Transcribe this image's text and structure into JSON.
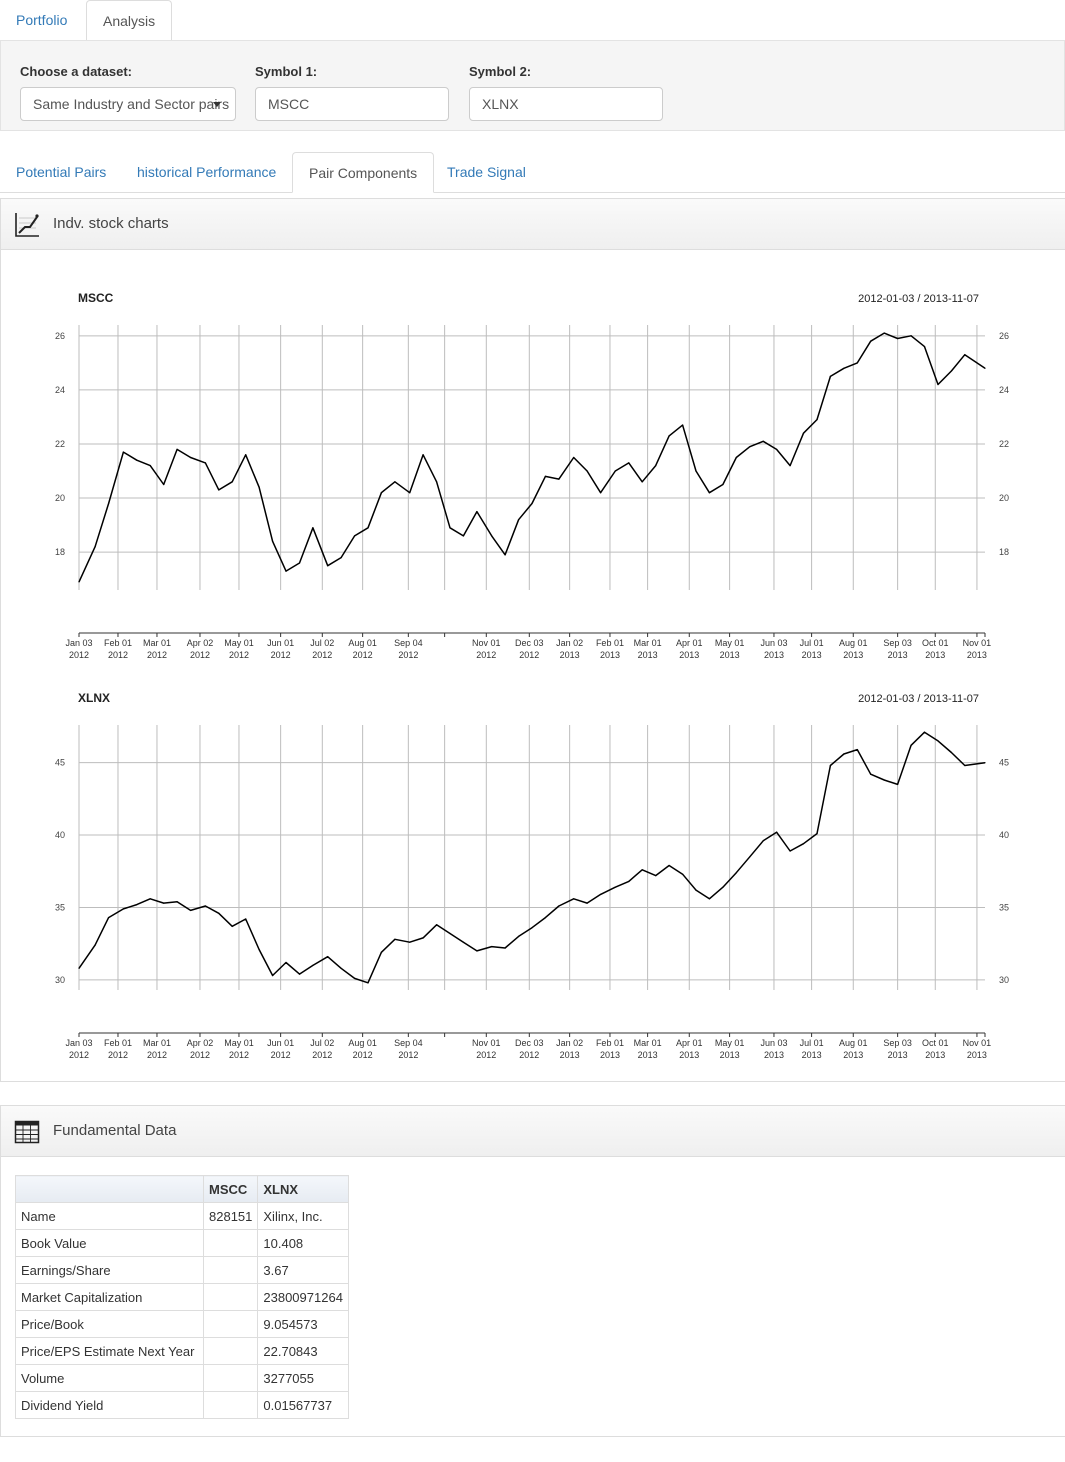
{
  "nav": {
    "tabs": [
      {
        "label": "Portfolio"
      },
      {
        "label": "Analysis"
      }
    ]
  },
  "controls": {
    "dataset_label": "Choose a dataset:",
    "dataset_value": "Same Industry and Sector pairs",
    "symbol1_label": "Symbol 1:",
    "symbol1_value": "MSCC",
    "symbol2_label": "Symbol 2:",
    "symbol2_value": "XLNX"
  },
  "subtabs": [
    {
      "label": "Potential Pairs"
    },
    {
      "label": "historical Performance"
    },
    {
      "label": "Pair Components"
    },
    {
      "label": "Trade Signal"
    }
  ],
  "panel_charts": {
    "title": "Indv. stock charts",
    "icon": "line-chart-icon"
  },
  "panel_fund": {
    "title": "Fundamental Data",
    "icon": "table-icon"
  },
  "chart_data": [
    {
      "type": "line",
      "title": "MSCC",
      "date_range": "2012-01-03 / 2013-11-07",
      "x_ticks": [
        "Jan 03\n2012",
        "Feb 01\n2012",
        "Mar 01\n2012",
        "Apr 02\n2012",
        "May 01\n2012",
        "Jun 01\n2012",
        "Jul 02\n2012",
        "Aug 01\n2012",
        "Sep 04\n2012",
        "Nov 01\n2012",
        "Dec 03\n2012",
        "Jan 02\n2013",
        "Feb 01\n2013",
        "Mar 01\n2013",
        "Apr 01\n2013",
        "May 01\n2013",
        "Jun 03\n2013",
        "Jul 01\n2013",
        "Aug 01\n2013",
        "Sep 03\n2013",
        "Oct 01\n2013",
        "Nov 01\n2013"
      ],
      "y_ticks": [
        18,
        20,
        22,
        24,
        26
      ],
      "ylim": [
        16.6,
        26.4
      ],
      "x": [
        "2012-01-03",
        "2012-01-15",
        "2012-01-25",
        "2012-02-05",
        "2012-02-15",
        "2012-02-25",
        "2012-03-06",
        "2012-03-16",
        "2012-03-26",
        "2012-04-06",
        "2012-04-16",
        "2012-04-26",
        "2012-05-06",
        "2012-05-16",
        "2012-05-26",
        "2012-06-05",
        "2012-06-15",
        "2012-06-25",
        "2012-07-06",
        "2012-07-16",
        "2012-07-26",
        "2012-08-05",
        "2012-08-15",
        "2012-08-25",
        "2012-09-05",
        "2012-09-15",
        "2012-09-25",
        "2012-10-05",
        "2012-10-15",
        "2012-10-25",
        "2012-11-05",
        "2012-11-15",
        "2012-11-25",
        "2012-12-05",
        "2012-12-15",
        "2012-12-25",
        "2013-01-05",
        "2013-01-15",
        "2013-01-25",
        "2013-02-05",
        "2013-02-15",
        "2013-02-25",
        "2013-03-07",
        "2013-03-17",
        "2013-03-27",
        "2013-04-06",
        "2013-04-16",
        "2013-04-26",
        "2013-05-06",
        "2013-05-16",
        "2013-05-26",
        "2013-06-05",
        "2013-06-15",
        "2013-06-25",
        "2013-07-05",
        "2013-07-15",
        "2013-07-25",
        "2013-08-04",
        "2013-08-14",
        "2013-08-24",
        "2013-09-03",
        "2013-09-13",
        "2013-09-23",
        "2013-10-03",
        "2013-10-13",
        "2013-10-23",
        "2013-11-07"
      ],
      "values": [
        16.9,
        18.2,
        19.8,
        21.7,
        21.4,
        21.2,
        20.5,
        21.8,
        21.5,
        21.3,
        20.3,
        20.6,
        21.6,
        20.4,
        18.4,
        17.3,
        17.6,
        18.9,
        17.5,
        17.8,
        18.6,
        18.9,
        20.2,
        20.6,
        20.2,
        21.6,
        20.6,
        18.9,
        18.6,
        19.5,
        18.6,
        17.9,
        19.2,
        19.8,
        20.8,
        20.7,
        21.5,
        21.0,
        20.2,
        21.0,
        21.3,
        20.6,
        21.2,
        22.3,
        22.7,
        21.0,
        20.2,
        20.5,
        21.5,
        21.9,
        22.1,
        21.8,
        21.2,
        22.4,
        22.9,
        24.5,
        24.8,
        25.0,
        25.8,
        26.1,
        25.9,
        26.0,
        25.6,
        24.2,
        24.7,
        25.3,
        24.8
      ]
    },
    {
      "type": "line",
      "title": "XLNX",
      "date_range": "2012-01-03 / 2013-11-07",
      "x_ticks": [
        "Jan 03\n2012",
        "Feb 01\n2012",
        "Mar 01\n2012",
        "Apr 02\n2012",
        "May 01\n2012",
        "Jun 01\n2012",
        "Jul 02\n2012",
        "Aug 01\n2012",
        "Sep 04\n2012",
        "Nov 01\n2012",
        "Dec 03\n2012",
        "Jan 02\n2013",
        "Feb 01\n2013",
        "Mar 01\n2013",
        "Apr 01\n2013",
        "May 01\n2013",
        "Jun 03\n2013",
        "Jul 01\n2013",
        "Aug 01\n2013",
        "Sep 03\n2013",
        "Oct 01\n2013",
        "Nov 01\n2013"
      ],
      "y_ticks": [
        30,
        35,
        40,
        45
      ],
      "ylim": [
        29.3,
        47.6
      ],
      "x": [
        "2012-01-03",
        "2012-01-15",
        "2012-01-25",
        "2012-02-05",
        "2012-02-15",
        "2012-02-25",
        "2012-03-06",
        "2012-03-16",
        "2012-03-26",
        "2012-04-06",
        "2012-04-16",
        "2012-04-26",
        "2012-05-06",
        "2012-05-16",
        "2012-05-26",
        "2012-06-05",
        "2012-06-15",
        "2012-06-25",
        "2012-07-06",
        "2012-07-16",
        "2012-07-26",
        "2012-08-05",
        "2012-08-15",
        "2012-08-25",
        "2012-09-05",
        "2012-09-15",
        "2012-09-25",
        "2012-10-05",
        "2012-10-15",
        "2012-10-25",
        "2012-11-05",
        "2012-11-15",
        "2012-11-25",
        "2012-12-05",
        "2012-12-15",
        "2012-12-25",
        "2013-01-05",
        "2013-01-15",
        "2013-01-25",
        "2013-02-05",
        "2013-02-15",
        "2013-02-25",
        "2013-03-07",
        "2013-03-17",
        "2013-03-27",
        "2013-04-06",
        "2013-04-16",
        "2013-04-26",
        "2013-05-06",
        "2013-05-16",
        "2013-05-26",
        "2013-06-05",
        "2013-06-15",
        "2013-06-25",
        "2013-07-05",
        "2013-07-15",
        "2013-07-25",
        "2013-08-04",
        "2013-08-14",
        "2013-08-24",
        "2013-09-03",
        "2013-09-13",
        "2013-09-23",
        "2013-10-03",
        "2013-10-13",
        "2013-10-23",
        "2013-11-07"
      ],
      "values": [
        30.8,
        32.4,
        34.3,
        34.9,
        35.2,
        35.6,
        35.3,
        35.4,
        34.8,
        35.1,
        34.6,
        33.7,
        34.2,
        32.1,
        30.3,
        31.2,
        30.4,
        31.0,
        31.6,
        30.8,
        30.1,
        29.8,
        31.9,
        32.8,
        32.6,
        32.9,
        33.8,
        33.2,
        32.6,
        32.0,
        32.3,
        32.2,
        33.0,
        33.6,
        34.3,
        35.1,
        35.6,
        35.3,
        35.9,
        36.4,
        36.8,
        37.6,
        37.2,
        37.9,
        37.3,
        36.2,
        35.6,
        36.4,
        37.4,
        38.5,
        39.6,
        40.2,
        38.9,
        39.4,
        40.1,
        44.8,
        45.6,
        45.9,
        44.2,
        43.8,
        43.5,
        46.2,
        47.1,
        46.5,
        45.7,
        44.8,
        45.0
      ]
    }
  ],
  "fundamental": {
    "columns": [
      "",
      "MSCC",
      "XLNX"
    ],
    "rows": [
      [
        "Name",
        "828151",
        "Xilinx, Inc."
      ],
      [
        "Book Value",
        "",
        "10.408"
      ],
      [
        "Earnings/Share",
        "",
        "3.67"
      ],
      [
        "Market Capitalization",
        "",
        "23800971264"
      ],
      [
        "Price/Book",
        "",
        "9.054573"
      ],
      [
        "Price/EPS Estimate Next Year",
        "",
        "22.70843"
      ],
      [
        "Volume",
        "",
        "3277055"
      ],
      [
        "Dividend Yield",
        "",
        "0.01567737"
      ]
    ]
  }
}
